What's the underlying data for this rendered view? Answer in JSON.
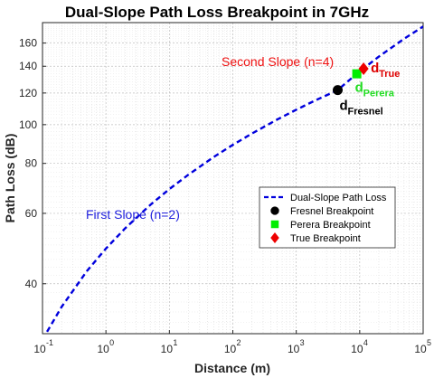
{
  "chart_data": {
    "type": "line",
    "title": "Dual-Slope Path Loss Breakpoint in 7GHz",
    "xlabel": "Distance (m)",
    "ylabel": "Path Loss (dB)",
    "x_scale": "log",
    "y_scale": "log",
    "xlim": [
      0.1,
      100000
    ],
    "ylim": [
      30,
      180
    ],
    "x_ticks": [
      0.1,
      1,
      10,
      100,
      1000,
      10000,
      100000
    ],
    "x_tick_labels": [
      {
        "base": "10",
        "exp": "-1"
      },
      {
        "base": "10",
        "exp": "0"
      },
      {
        "base": "10",
        "exp": "1"
      },
      {
        "base": "10",
        "exp": "2"
      },
      {
        "base": "10",
        "exp": "3"
      },
      {
        "base": "10",
        "exp": "4"
      },
      {
        "base": "10",
        "exp": "5"
      }
    ],
    "y_ticks": [
      40,
      60,
      80,
      100,
      120,
      140,
      160
    ],
    "grid": true,
    "series": [
      {
        "name": "Dual-Slope Path Loss",
        "color": "#0000dd",
        "style": "dashed",
        "x": [
          0.1,
          0.2,
          0.5,
          1,
          2,
          5,
          10,
          20,
          50,
          100,
          200,
          500,
          1000,
          2000,
          4500,
          6000,
          9000,
          12000,
          20000,
          50000,
          100000
        ],
        "y": [
          29,
          35,
          43,
          49,
          55,
          63,
          69,
          75,
          83,
          89,
          95,
          103,
          109,
          115,
          122,
          127,
          134,
          139,
          148,
          164,
          176
        ]
      }
    ],
    "points": [
      {
        "name": "Fresnel Breakpoint",
        "x": 4500,
        "y": 122,
        "color": "#000000",
        "marker": "circle",
        "label_main": "d",
        "label_sub": "Fresnel",
        "label_color": "#000000"
      },
      {
        "name": "Perera Breakpoint",
        "x": 9000,
        "y": 134,
        "color": "#00ee00",
        "marker": "square",
        "label_main": "d",
        "label_sub": "Perera",
        "label_color": "#22dd22"
      },
      {
        "name": "True Breakpoint",
        "x": 11500,
        "y": 138,
        "color": "#ee0000",
        "marker": "diamond",
        "label_main": "d",
        "label_sub": "True",
        "label_color": "#dd0000"
      }
    ],
    "annotations": [
      {
        "text": "Second Slope (n=4)",
        "color": "#ee1111"
      },
      {
        "text": "First Slope (n=2)",
        "color": "#1f1fdd"
      }
    ],
    "legend_placement": "center-right"
  }
}
